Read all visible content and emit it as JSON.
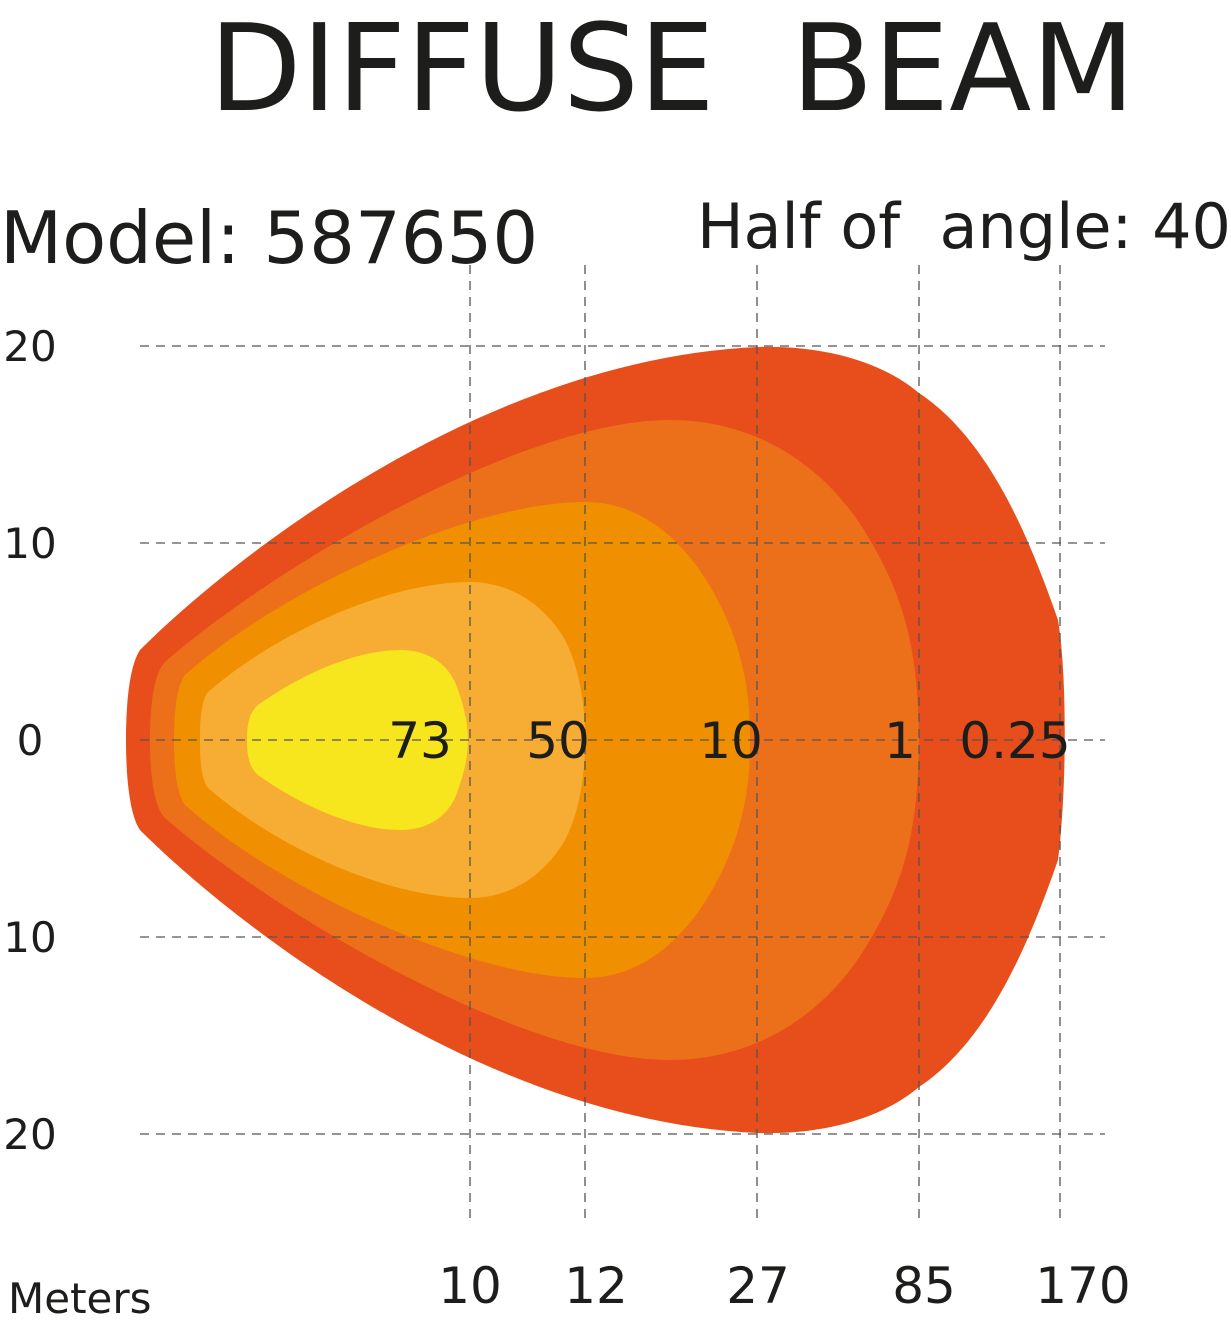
{
  "chart_data": {
    "type": "area",
    "title": "DIFFUSE  BEAM",
    "model_label": "Model: 587650",
    "angle_label": "Half of  angle: 40",
    "xlabel": "Meters",
    "x_ticks": [
      "10",
      "12",
      "27",
      "85",
      "170"
    ],
    "y_ticks": [
      "20",
      "10",
      "0",
      "10",
      "20"
    ],
    "ylim": [
      -20,
      20
    ],
    "grid": true,
    "zones": [
      {
        "label": "0.25",
        "reach_tick": "170",
        "half_width": 20,
        "color": "#e84e1b"
      },
      {
        "label": "1",
        "reach_tick": "85",
        "half_width": 16,
        "color": "#ec7019"
      },
      {
        "label": "10",
        "reach_tick": "27",
        "half_width": 12,
        "color": "#f08f00"
      },
      {
        "label": "50",
        "reach_tick": "12",
        "half_width": 8,
        "color": "#f7ad33"
      },
      {
        "label": "73",
        "reach_tick": "10",
        "half_width": 4.5,
        "color": "#f7e61d"
      }
    ]
  }
}
